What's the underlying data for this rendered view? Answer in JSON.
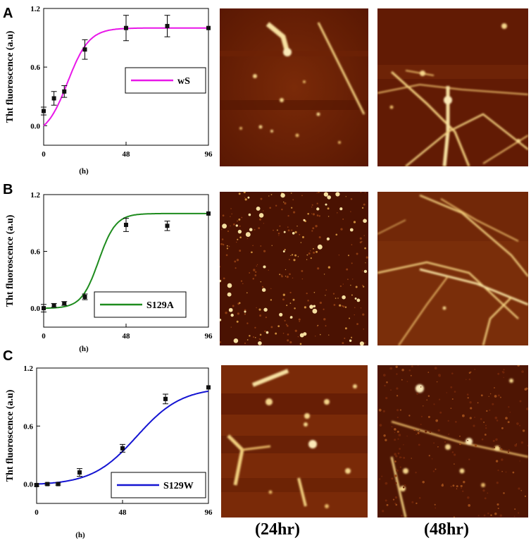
{
  "panels": [
    {
      "letter": "A",
      "afm_label_left": "",
      "afm_label_right": ""
    },
    {
      "letter": "B",
      "afm_label_left": "",
      "afm_label_right": ""
    },
    {
      "letter": "C",
      "afm_label_left": "(24hr)",
      "afm_label_right": "(48hr)"
    }
  ],
  "chart_data": [
    {
      "type": "line",
      "ylabel": "Tht fluoroscence (a.u)",
      "xlabel": "(h)",
      "xticks": [
        "0",
        "48",
        "96"
      ],
      "yticks": [
        "0.0",
        "0.6",
        "1.2"
      ],
      "xlim": [
        0,
        96
      ],
      "ylim": [
        -0.2,
        1.2
      ],
      "series": [
        {
          "name": "wS",
          "color": "#e817e8",
          "fit": {
            "k": 0.16,
            "x0": 14
          },
          "x": [
            0,
            6,
            12,
            24,
            48,
            72,
            96
          ],
          "y": [
            0.15,
            0.28,
            0.35,
            0.78,
            1.0,
            1.02,
            1.0
          ],
          "err": [
            0.04,
            0.07,
            0.06,
            0.1,
            0.13,
            0.11,
            0.0
          ]
        }
      ]
    },
    {
      "type": "line",
      "ylabel": "Tht fluoroscence (a.u)",
      "xlabel": "(h)",
      "xticks": [
        "0",
        "48",
        "96"
      ],
      "yticks": [
        "0.0",
        "0.6",
        "1.2"
      ],
      "xlim": [
        0,
        96
      ],
      "ylim": [
        -0.2,
        1.2
      ],
      "series": [
        {
          "name": "S129A",
          "color": "#1e8c1e",
          "fit": {
            "k": 0.2,
            "x0": 32
          },
          "x": [
            0,
            6,
            12,
            24,
            48,
            72,
            96
          ],
          "y": [
            0.0,
            0.03,
            0.05,
            0.12,
            0.88,
            0.87,
            1.0
          ],
          "err": [
            0.04,
            0.02,
            0.02,
            0.03,
            0.07,
            0.05,
            0.0
          ]
        }
      ]
    },
    {
      "type": "line",
      "ylabel": "Tht fluoroscence (a.u)",
      "xlabel": "(h)",
      "xticks": [
        "0",
        "48",
        "96"
      ],
      "yticks": [
        "0.0",
        "0.6",
        "1.2"
      ],
      "xlim": [
        0,
        96
      ],
      "ylim": [
        -0.2,
        1.2
      ],
      "series": [
        {
          "name": "S129W",
          "color": "#1414d2",
          "fit": {
            "k": 0.08,
            "x0": 56
          },
          "x": [
            0,
            6,
            12,
            24,
            48,
            72,
            96
          ],
          "y": [
            -0.01,
            0.0,
            0.0,
            0.12,
            0.37,
            0.88,
            1.0
          ],
          "err": [
            0.01,
            0.01,
            0.01,
            0.04,
            0.04,
            0.05,
            0.0
          ]
        }
      ]
    }
  ]
}
